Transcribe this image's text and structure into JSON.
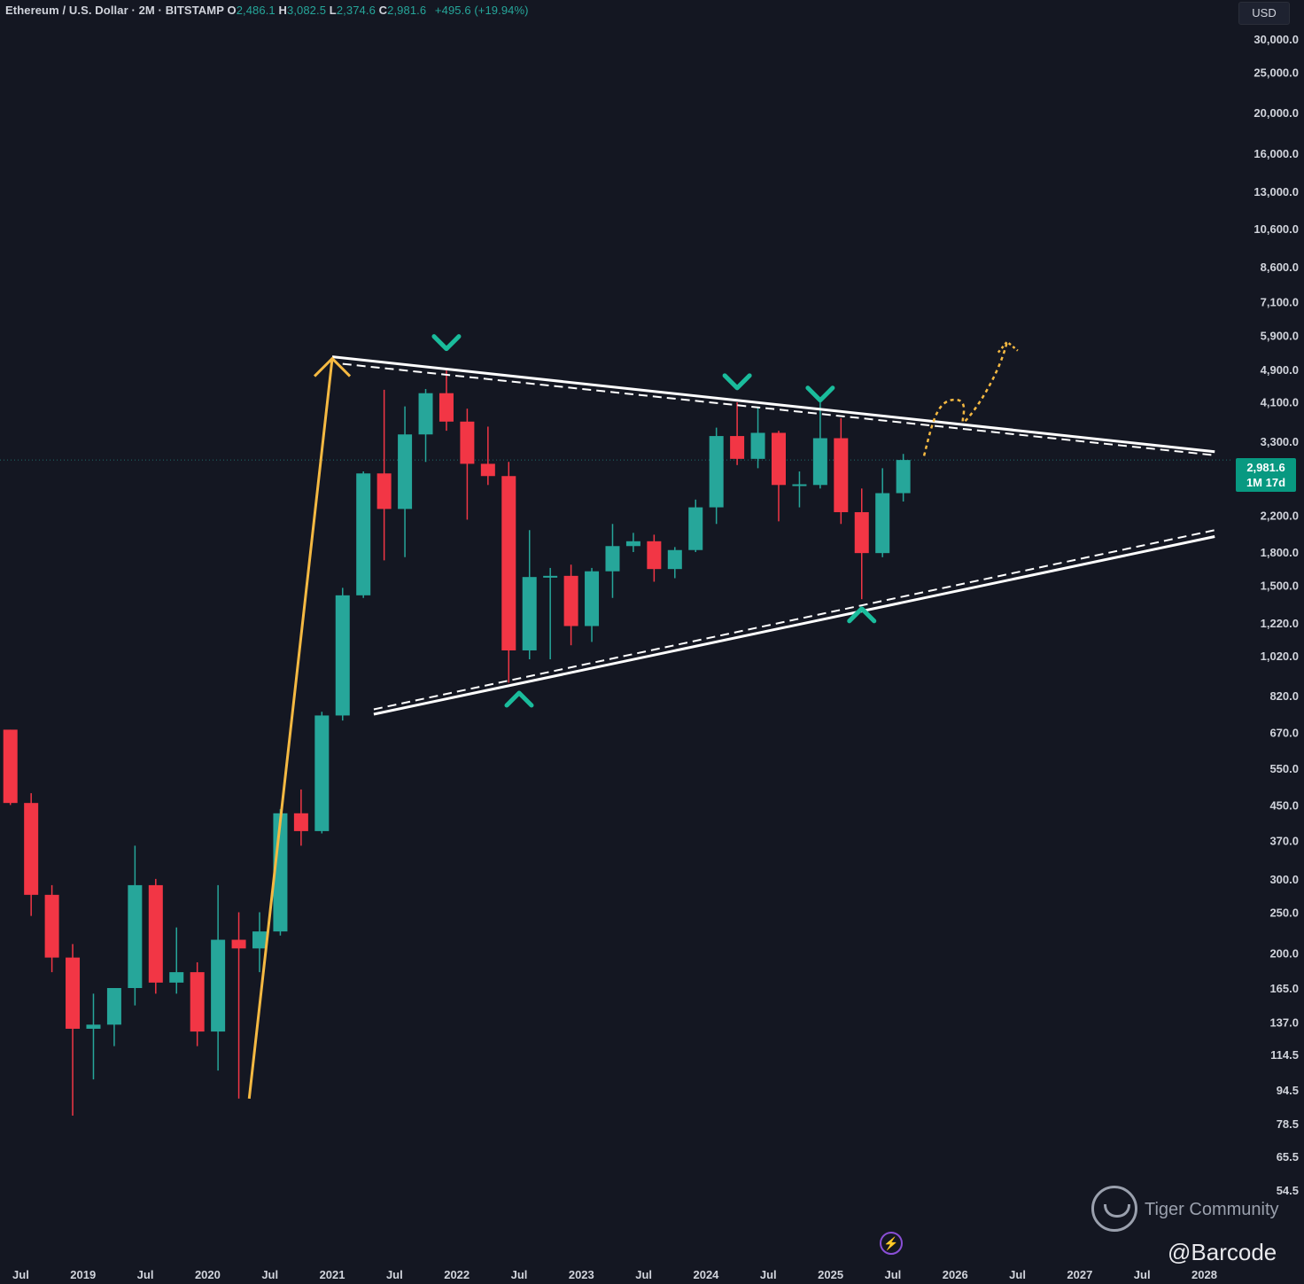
{
  "header": {
    "symbol": "Ethereum / U.S. Dollar · 2M · BITSTAMP",
    "o_label": "O",
    "o_value": "2,486.1",
    "h_label": "H",
    "h_value": "3,082.5",
    "l_label": "L",
    "l_value": "2,374.6",
    "c_label": "C",
    "c_value": "2,981.6",
    "change": "+495.6 (+19.94%)"
  },
  "currency": "USD",
  "last_price": {
    "price": "2,981.6",
    "countdown": "1M 17d"
  },
  "watermark": {
    "brand": "Tiger Community",
    "author": "@Barcode"
  },
  "colors": {
    "background": "#141722",
    "up": "#26a69a",
    "down": "#f23645",
    "trendline": "#ffffff",
    "arrow": "#f5b942",
    "marker": "#1abc9c"
  },
  "chart_data": {
    "type": "candlestick",
    "scale": "log",
    "ylim": [
      46,
      31000
    ],
    "xlim": [
      "2018-05",
      "2028-05"
    ],
    "y_ticks": [
      "30,000.0",
      "25,000.0",
      "20,000.0",
      "16,000.0",
      "13,000.0",
      "10,600.0",
      "8,600.0",
      "7,100.0",
      "5,900.0",
      "4,900.0",
      "4,100.0",
      "3,300.0",
      "2,200.0",
      "1,800.0",
      "1,500.0",
      "1,220.0",
      "1,020.0",
      "820.0",
      "670.0",
      "550.0",
      "450.0",
      "370.0",
      "300.0",
      "250.0",
      "200.0",
      "165.0",
      "137.0",
      "114.5",
      "94.5",
      "78.5",
      "65.5",
      "54.5"
    ],
    "x_ticks": [
      "Jul",
      "2019",
      "Jul",
      "2020",
      "Jul",
      "2021",
      "Jul",
      "2022",
      "Jul",
      "2023",
      "Jul",
      "2024",
      "Jul",
      "2025",
      "Jul",
      "2026",
      "Jul",
      "2027",
      "Jul",
      "2028"
    ],
    "candles": [
      {
        "t": "2018-05",
        "o": 680,
        "h": 680,
        "l": 450,
        "c": 455
      },
      {
        "t": "2018-07",
        "o": 455,
        "h": 480,
        "l": 245,
        "c": 275
      },
      {
        "t": "2018-09",
        "o": 275,
        "h": 290,
        "l": 180,
        "c": 195
      },
      {
        "t": "2018-11",
        "o": 195,
        "h": 210,
        "l": 82,
        "c": 132
      },
      {
        "t": "2019-01",
        "o": 132,
        "h": 160,
        "l": 100,
        "c": 135
      },
      {
        "t": "2019-03",
        "o": 135,
        "h": 150,
        "l": 120,
        "c": 165
      },
      {
        "t": "2019-05",
        "o": 165,
        "h": 360,
        "l": 150,
        "c": 290
      },
      {
        "t": "2019-07",
        "o": 290,
        "h": 300,
        "l": 160,
        "c": 170
      },
      {
        "t": "2019-09",
        "o": 170,
        "h": 230,
        "l": 160,
        "c": 180
      },
      {
        "t": "2019-11",
        "o": 180,
        "h": 190,
        "l": 120,
        "c": 130
      },
      {
        "t": "2020-01",
        "o": 130,
        "h": 290,
        "l": 105,
        "c": 215
      },
      {
        "t": "2020-03",
        "o": 215,
        "h": 250,
        "l": 90,
        "c": 205
      },
      {
        "t": "2020-05",
        "o": 205,
        "h": 250,
        "l": 180,
        "c": 225
      },
      {
        "t": "2020-07",
        "o": 225,
        "h": 440,
        "l": 220,
        "c": 430
      },
      {
        "t": "2020-09",
        "o": 430,
        "h": 490,
        "l": 360,
        "c": 390
      },
      {
        "t": "2020-11",
        "o": 390,
        "h": 750,
        "l": 385,
        "c": 735
      },
      {
        "t": "2021-01",
        "o": 735,
        "h": 1480,
        "l": 715,
        "c": 1420
      },
      {
        "t": "2021-03",
        "o": 1420,
        "h": 2800,
        "l": 1400,
        "c": 2770
      },
      {
        "t": "2021-05",
        "o": 2770,
        "h": 4380,
        "l": 1720,
        "c": 2280
      },
      {
        "t": "2021-07",
        "o": 2280,
        "h": 4000,
        "l": 1750,
        "c": 3430
      },
      {
        "t": "2021-09",
        "o": 3430,
        "h": 4400,
        "l": 2950,
        "c": 4300
      },
      {
        "t": "2021-11",
        "o": 4300,
        "h": 4870,
        "l": 3500,
        "c": 3680
      },
      {
        "t": "2022-01",
        "o": 3680,
        "h": 3950,
        "l": 2150,
        "c": 2920
      },
      {
        "t": "2022-03",
        "o": 2920,
        "h": 3580,
        "l": 2600,
        "c": 2730
      },
      {
        "t": "2022-05",
        "o": 2730,
        "h": 2950,
        "l": 880,
        "c": 1050
      },
      {
        "t": "2022-07",
        "o": 1050,
        "h": 2030,
        "l": 1000,
        "c": 1570
      },
      {
        "t": "2022-09",
        "o": 1570,
        "h": 1650,
        "l": 1000,
        "c": 1580
      },
      {
        "t": "2022-11",
        "o": 1580,
        "h": 1680,
        "l": 1080,
        "c": 1200
      },
      {
        "t": "2023-01",
        "o": 1200,
        "h": 1650,
        "l": 1100,
        "c": 1620
      },
      {
        "t": "2023-03",
        "o": 1620,
        "h": 2100,
        "l": 1400,
        "c": 1860
      },
      {
        "t": "2023-05",
        "o": 1860,
        "h": 2000,
        "l": 1800,
        "c": 1910
      },
      {
        "t": "2023-07",
        "o": 1910,
        "h": 1980,
        "l": 1530,
        "c": 1640
      },
      {
        "t": "2023-09",
        "o": 1640,
        "h": 1850,
        "l": 1560,
        "c": 1820
      },
      {
        "t": "2023-11",
        "o": 1820,
        "h": 2400,
        "l": 1800,
        "c": 2300
      },
      {
        "t": "2024-01",
        "o": 2300,
        "h": 3560,
        "l": 2100,
        "c": 3400
      },
      {
        "t": "2024-03",
        "o": 3400,
        "h": 4090,
        "l": 2900,
        "c": 3000
      },
      {
        "t": "2024-05",
        "o": 3000,
        "h": 3980,
        "l": 2850,
        "c": 3460
      },
      {
        "t": "2024-07",
        "o": 3460,
        "h": 3500,
        "l": 2130,
        "c": 2600
      },
      {
        "t": "2024-09",
        "o": 2600,
        "h": 2800,
        "l": 2300,
        "c": 2610
      },
      {
        "t": "2024-11",
        "o": 2600,
        "h": 4100,
        "l": 2550,
        "c": 3360
      },
      {
        "t": "2025-01",
        "o": 3360,
        "h": 3750,
        "l": 2100,
        "c": 2240
      },
      {
        "t": "2025-03",
        "o": 2240,
        "h": 2550,
        "l": 1390,
        "c": 1790
      },
      {
        "t": "2025-05",
        "o": 1790,
        "h": 2850,
        "l": 1750,
        "c": 2486
      },
      {
        "t": "2025-07",
        "o": 2486.1,
        "h": 3082.5,
        "l": 2374.6,
        "c": 2981.6
      }
    ],
    "trendlines": [
      {
        "kind": "solid",
        "from": {
          "t": "2020-12",
          "p": 5250
        },
        "to": {
          "t": "2028-01",
          "p": 3120
        }
      },
      {
        "kind": "dashed",
        "from": {
          "t": "2021-01",
          "p": 5050
        },
        "to": {
          "t": "2028-01",
          "p": 3060
        }
      },
      {
        "kind": "solid",
        "from": {
          "t": "2021-04",
          "p": 740
        },
        "to": {
          "t": "2028-01",
          "p": 1960
        }
      },
      {
        "kind": "dashed",
        "from": {
          "t": "2021-04",
          "p": 760
        },
        "to": {
          "t": "2028-01",
          "p": 2030
        }
      }
    ],
    "arrow": {
      "from": {
        "t": "2020-04",
        "p": 90
      },
      "to": {
        "t": "2020-12",
        "p": 5200
      }
    },
    "projection": [
      {
        "t": "2025-09",
        "p": 3050
      },
      {
        "t": "2025-12",
        "p": 4150
      },
      {
        "t": "2026-01",
        "p": 3700
      },
      {
        "t": "2026-05",
        "p": 5700
      }
    ],
    "markers": [
      {
        "dir": "down",
        "t": "2021-11",
        "p": 5700
      },
      {
        "dir": "down",
        "t": "2024-03",
        "p": 4600
      },
      {
        "dir": "down",
        "t": "2024-11",
        "p": 4300
      },
      {
        "dir": "up",
        "t": "2022-06",
        "p": 800
      },
      {
        "dir": "up",
        "t": "2025-03",
        "p": 1270
      }
    ]
  }
}
